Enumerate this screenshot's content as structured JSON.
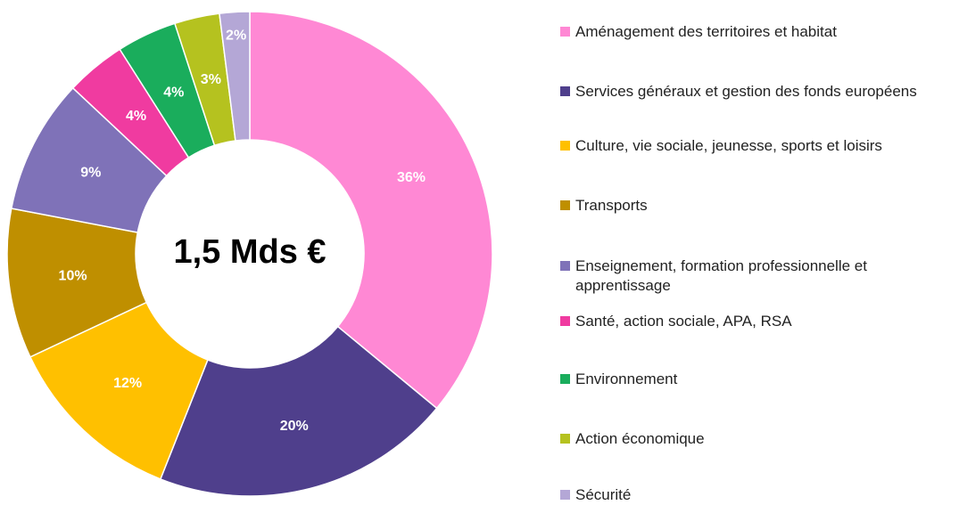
{
  "chart_data": {
    "type": "donut",
    "center_label": "1,5 Mds €",
    "categories": [
      "Aménagement des territoires et habitat",
      "Services généraux et gestion des fonds européens",
      "Culture, vie sociale, jeunesse, sports et loisirs",
      "Transports",
      "Enseignement, formation professionnelle et apprentissage",
      "Santé, action sociale, APA, RSA",
      "Environnement",
      "Action économique",
      "Sécurité"
    ],
    "values": [
      36,
      20,
      12,
      10,
      9,
      4,
      4,
      3,
      2
    ],
    "value_labels": [
      "36%",
      "20%",
      "12%",
      "10%",
      "9%",
      "4%",
      "4%",
      "3%",
      "2%"
    ],
    "colors": [
      "#ff88d4",
      "#4f3f8c",
      "#ffc000",
      "#bf8f00",
      "#7f72b8",
      "#f03ba0",
      "#1aad5c",
      "#b5c21f",
      "#b4a7d6"
    ],
    "legend": "right"
  }
}
